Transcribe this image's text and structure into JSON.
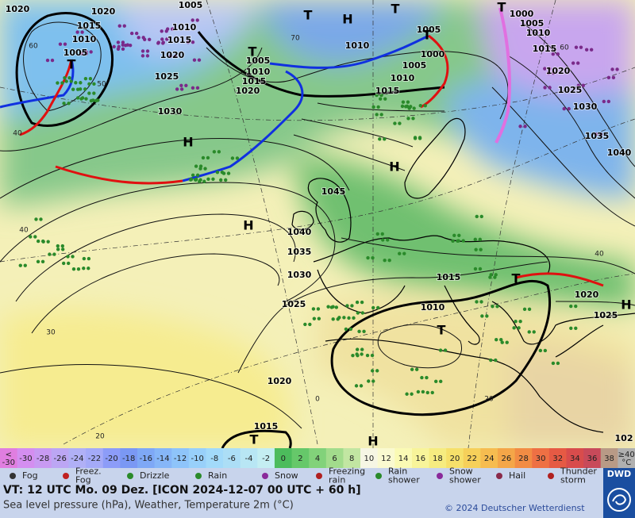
{
  "map": {
    "pressure_labels": [
      "1020",
      "1020",
      "1005",
      "1015",
      "1010",
      "1010",
      "1015",
      "1005",
      "1020",
      "1005",
      "1010",
      "1025",
      "1015",
      "1020",
      "1030",
      "1010",
      "1005",
      "1000",
      "1005",
      "1010",
      "1015",
      "1000",
      "1005",
      "1010",
      "1015",
      "1020",
      "1025",
      "1030",
      "1035",
      "1040",
      "1045",
      "1040",
      "1035",
      "1030",
      "1025",
      "1015",
      "1010",
      "1020",
      "1025",
      "1020",
      "1015",
      "102"
    ],
    "pressure_centers": [
      "T",
      "H",
      "T",
      "T",
      "T",
      "T",
      "T",
      "H",
      "H",
      "H",
      "T",
      "T",
      "T",
      "H",
      "H"
    ],
    "temperature_labels": [
      "60",
      "50",
      "40",
      "70",
      "40",
      "30",
      "20",
      "0",
      "40",
      "20",
      "60"
    ]
  },
  "scale": {
    "cells": [
      {
        "lines": [
          "<",
          "-30"
        ],
        "color": "#e07ee0"
      },
      {
        "lines": [
          "-30"
        ],
        "color": "#d48ef0"
      },
      {
        "lines": [
          "-28"
        ],
        "color": "#c89af2"
      },
      {
        "lines": [
          "-26"
        ],
        "color": "#bca6f4"
      },
      {
        "lines": [
          "-24"
        ],
        "color": "#b0b0f6"
      },
      {
        "lines": [
          "-22"
        ],
        "color": "#a4aaf8"
      },
      {
        "lines": [
          "-20"
        ],
        "color": "#8c9cf8"
      },
      {
        "lines": [
          "-18"
        ],
        "color": "#7a98f4"
      },
      {
        "lines": [
          "-16"
        ],
        "color": "#7ea8f6"
      },
      {
        "lines": [
          "-14"
        ],
        "color": "#86b6f8"
      },
      {
        "lines": [
          "-12"
        ],
        "color": "#8ec4fa"
      },
      {
        "lines": [
          "-10"
        ],
        "color": "#98d0fa"
      },
      {
        "lines": [
          "-8"
        ],
        "color": "#a2dafa"
      },
      {
        "lines": [
          "-6"
        ],
        "color": "#acdef6"
      },
      {
        "lines": [
          "-4"
        ],
        "color": "#b8e6f4"
      },
      {
        "lines": [
          "-2"
        ],
        "color": "#c4eef2"
      },
      {
        "lines": [
          "0"
        ],
        "color": "#4cbc5c"
      },
      {
        "lines": [
          "2"
        ],
        "color": "#66c86a"
      },
      {
        "lines": [
          "4"
        ],
        "color": "#82d27a"
      },
      {
        "lines": [
          "6"
        ],
        "color": "#a2dc8c"
      },
      {
        "lines": [
          "8"
        ],
        "color": "#c2e6a2"
      },
      {
        "lines": [
          "10"
        ],
        "color": "#f6f6e4"
      },
      {
        "lines": [
          "12"
        ],
        "color": "#fafad0"
      },
      {
        "lines": [
          "14"
        ],
        "color": "#fafab4"
      },
      {
        "lines": [
          "16"
        ],
        "color": "#f8f49a"
      },
      {
        "lines": [
          "18"
        ],
        "color": "#f6ec80"
      },
      {
        "lines": [
          "20"
        ],
        "color": "#f6e06a"
      },
      {
        "lines": [
          "22"
        ],
        "color": "#f6d05a"
      },
      {
        "lines": [
          "24"
        ],
        "color": "#f6bc50"
      },
      {
        "lines": [
          "26"
        ],
        "color": "#f4a648"
      },
      {
        "lines": [
          "28"
        ],
        "color": "#f28c44"
      },
      {
        "lines": [
          "30"
        ],
        "color": "#ee7044"
      },
      {
        "lines": [
          "32"
        ],
        "color": "#e65a44"
      },
      {
        "lines": [
          "34"
        ],
        "color": "#d84c4c"
      },
      {
        "lines": [
          "36"
        ],
        "color": "#c84a5a"
      },
      {
        "lines": [
          "38"
        ],
        "color": "#b89a86"
      },
      {
        "lines": [
          "≥40",
          "°C"
        ],
        "color": "#b0b0b0"
      }
    ]
  },
  "legend": [
    {
      "lines": [
        "Fog"
      ]
    },
    {
      "lines": [
        "Freez.",
        "Fog"
      ]
    },
    {
      "lines": [
        "Drizzle"
      ]
    },
    {
      "lines": [
        "Rain"
      ]
    },
    {
      "lines": [
        "Snow"
      ]
    },
    {
      "lines": [
        "Freezing",
        "rain"
      ]
    },
    {
      "lines": [
        "Rain",
        "shower"
      ]
    },
    {
      "lines": [
        "Snow",
        "shower"
      ]
    },
    {
      "lines": [
        "Hail"
      ]
    },
    {
      "lines": [
        "Thunder",
        "storm"
      ]
    }
  ],
  "footer": {
    "valid_time": "VT: 12 UTC Mo.  09 Dez. [ICON 2024-12-07  00 UTC + 60 h]",
    "description": "Sea level pressure (hPa), Weather, Temperature 2m (°C)",
    "copyright": "© 2024 Deutscher Wetterdienst",
    "logo": "DWD"
  }
}
